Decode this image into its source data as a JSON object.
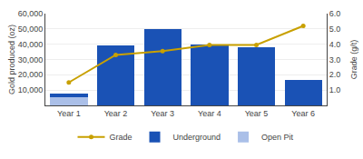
{
  "chart_data": {
    "type": "bar",
    "stacked": true,
    "categories": [
      "Year 1",
      "Year 2",
      "Year 3",
      "Year 4",
      "Year 5",
      "Year 6"
    ],
    "series": [
      {
        "name": "Open Pit",
        "type": "bar",
        "color": "#AABFE8",
        "values": [
          5500,
          0,
          0,
          0,
          0,
          0
        ]
      },
      {
        "name": "Underground",
        "type": "bar",
        "color": "#1A52B5",
        "values": [
          2500,
          39000,
          50000,
          40000,
          38000,
          16500
        ]
      },
      {
        "name": "Grade",
        "type": "line",
        "axis": "y2",
        "color": "#C8A000",
        "marker": "circle",
        "line_style": "solid",
        "values": [
          1.5,
          3.3,
          3.55,
          3.95,
          3.95,
          5.2
        ]
      }
    ],
    "ylabel": "Gold produced (oz)",
    "y2label": "Grade (g/t)",
    "ylim": [
      0,
      60000
    ],
    "yticks": [
      {
        "value": 10000,
        "label": "10,000"
      },
      {
        "value": 20000,
        "label": "20,000"
      },
      {
        "value": 30000,
        "label": "30,000"
      },
      {
        "value": 40000,
        "label": "40,000"
      },
      {
        "value": 50000,
        "label": "50,000"
      },
      {
        "value": 60000,
        "label": "60,000"
      }
    ],
    "y2lim": [
      0,
      6.0
    ],
    "y2ticks": [
      {
        "value": 1.0,
        "label": "1.0"
      },
      {
        "value": 2.0,
        "label": "2.0"
      },
      {
        "value": 3.0,
        "label": "3.0"
      },
      {
        "value": 4.0,
        "label": "4.0"
      },
      {
        "value": 5.0,
        "label": "5.0"
      },
      {
        "value": 6.0,
        "label": "6.0"
      }
    ],
    "grid": true,
    "legend": "bottom"
  }
}
